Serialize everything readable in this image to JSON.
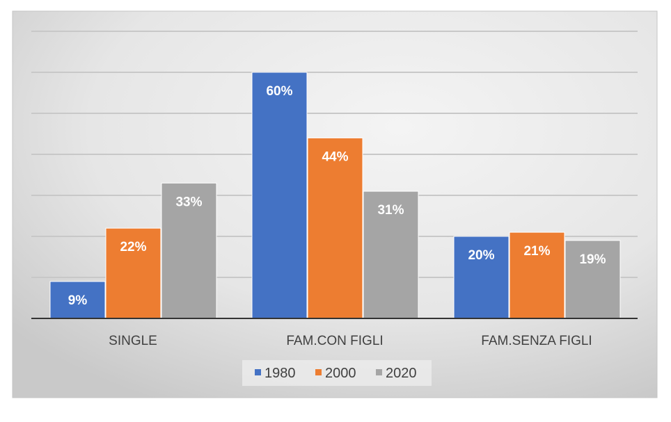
{
  "chart_data": {
    "type": "bar",
    "title": "",
    "xlabel": "",
    "ylabel": "",
    "ylim": [
      0,
      70
    ],
    "grid": true,
    "legend_position": "bottom",
    "categories": [
      "SINGLE",
      "FAM.CON FIGLI",
      "FAM.SENZA FIGLI"
    ],
    "series": [
      {
        "name": "1980",
        "color": "#4472C4",
        "values": [
          9,
          60,
          20
        ]
      },
      {
        "name": "2000",
        "color": "#ED7D31",
        "values": [
          22,
          44,
          21
        ]
      },
      {
        "name": "2020",
        "color": "#A5A5A5",
        "values": [
          33,
          31,
          19
        ]
      }
    ],
    "value_suffix": "%"
  }
}
